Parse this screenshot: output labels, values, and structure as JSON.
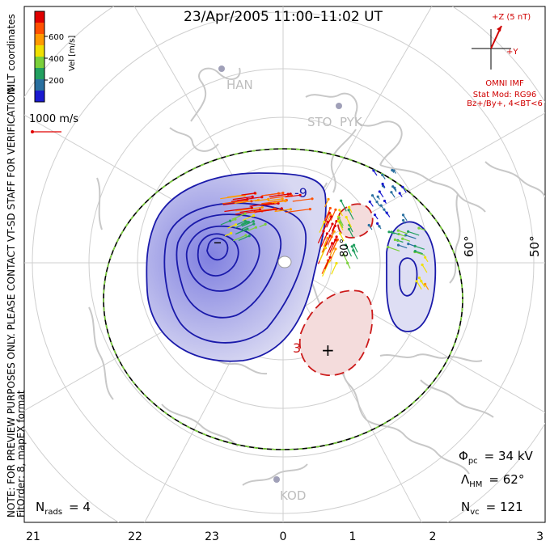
{
  "title": "23/Apr/2005 11:00–11:02 UT",
  "coord_label": "MLT coordinates",
  "note": "NOTE: FOR PREVIEW PURPOSES ONLY. PLEASE CONTACT VT-SD STAFF FOR VERIFICATION.",
  "fit_info": "FitOrder: 8,  mapEX format",
  "colorbar": {
    "label": "Vel [m/s]",
    "ticks": [
      "600",
      "400",
      "200"
    ],
    "colors": [
      "#e00000",
      "#ff5000",
      "#ff9a00",
      "#f0e000",
      "#7ad03a",
      "#22a060",
      "#2a70a0",
      "#1a1ad0"
    ]
  },
  "scale_vector": "1000 m/s",
  "imf": {
    "bz_label": "+Z (5 nT)",
    "by_label": "+Y",
    "source": "OMNI IMF",
    "stat_mod": "Stat Mod: RG96",
    "condition": "Bz+/By+, 4<BT<6"
  },
  "radar_sites": [
    "HAN",
    "STO",
    "PYK",
    "KOD"
  ],
  "latitude_labels": [
    "60°",
    "50°",
    "80°"
  ],
  "contour_labels": [
    "-9",
    "3"
  ],
  "extrema": {
    "min_symbol": "–",
    "max_symbol": "+"
  },
  "stats": {
    "phi_pc_sym": "Φ",
    "phi_pc_sub": "pc",
    "phi_pc_val": "= 34 kV",
    "lambda_hm_sym": "Λ",
    "lambda_hm_sub": "HM",
    "lambda_hm_val": "= 62°",
    "n_vc_sym": "N",
    "n_vc_sub": "vc",
    "n_vc_val": "= 121",
    "n_rads_sym": "N",
    "n_rads_sub": "rads",
    "n_rads_val": "= 4"
  },
  "mlt_axis": [
    "21",
    "22",
    "23",
    "0",
    "1",
    "2",
    "3"
  ],
  "colors": {
    "negative_cell": "#1a1aaa",
    "positive_cell": "#cc1a1a",
    "coastline": "#c8c8c8",
    "hmb_dash": "#7ad03a"
  }
}
